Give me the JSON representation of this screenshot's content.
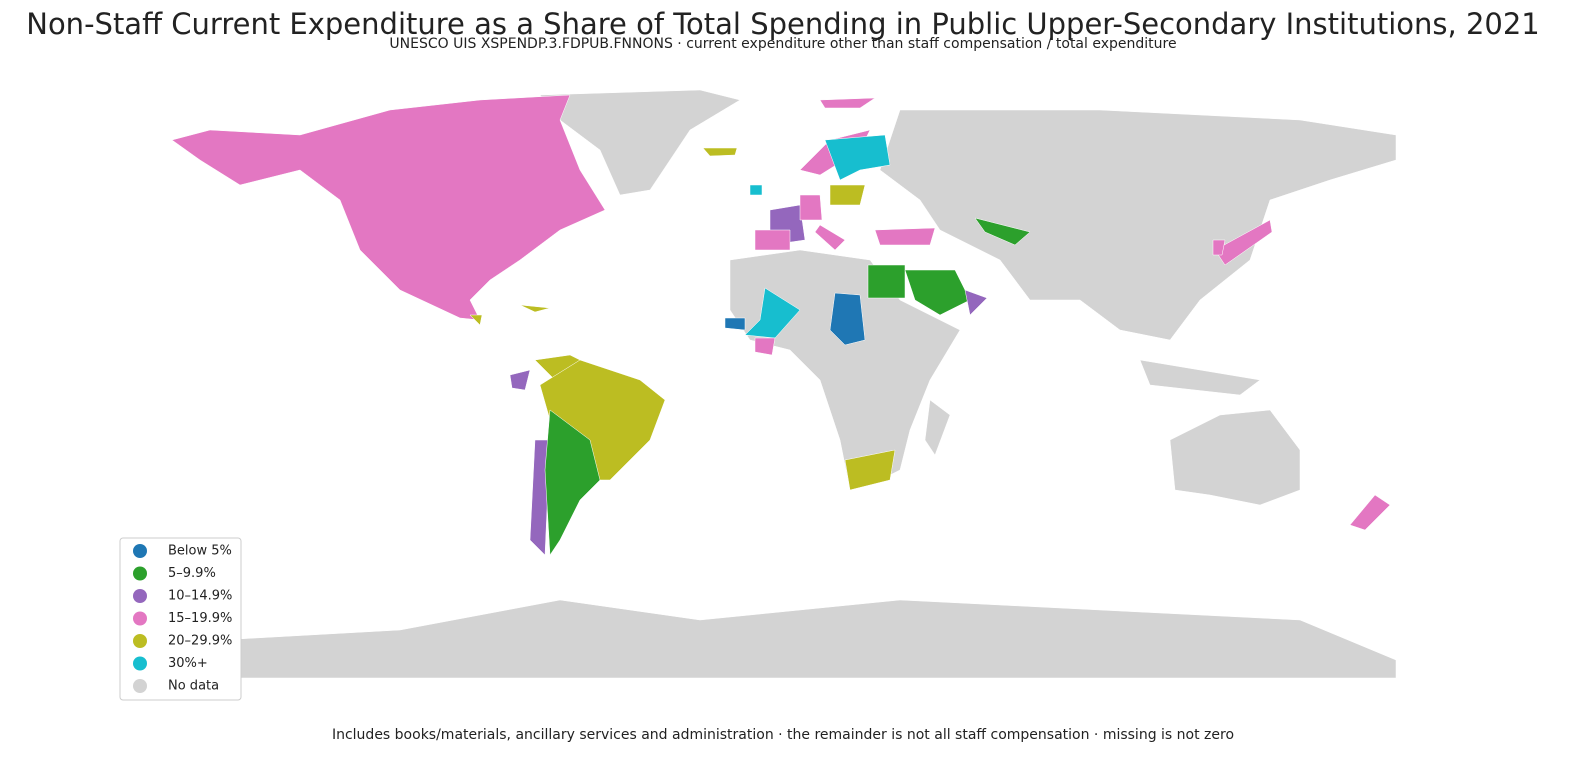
{
  "title": "Non-Staff Current Expenditure as a Share of Total Spending in Public Upper-Secondary Institutions, 2021",
  "subtitle": "UNESCO UIS XSPENDP.3.FDPUB.FNNONS · current expenditure other than staff compensation / total expenditure",
  "legend": {
    "items": [
      {
        "label": "Below 5%",
        "color": "#1f77b4"
      },
      {
        "label": "5–9.9%",
        "color": "#2ca02c"
      },
      {
        "label": "10–14.9%",
        "color": "#9467bd"
      },
      {
        "label": "15–19.9%",
        "color": "#e377c2"
      },
      {
        "label": "20–29.9%",
        "color": "#bcbd22"
      },
      {
        "label": "30%+",
        "color": "#17becf"
      },
      {
        "label": "No data",
        "color": "#d3d3d3"
      }
    ]
  },
  "footnote": "Includes books/materials, ancillary services and administration · the remainder is not all staff compensation · missing is not zero"
}
